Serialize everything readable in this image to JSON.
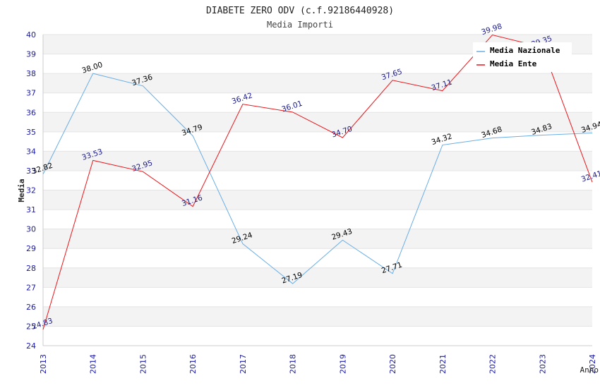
{
  "chart_data": {
    "type": "line",
    "title": "DIABETE ZERO ODV (c.f.92186440928)",
    "subtitle": "Media Importi",
    "xlabel": "Anno",
    "ylabel": "Media",
    "x": [
      "2013",
      "2014",
      "2015",
      "2016",
      "2017",
      "2018",
      "2019",
      "2020",
      "2021",
      "2022",
      "2023",
      "2024"
    ],
    "ylim": [
      24,
      40
    ],
    "yticks": [
      "24",
      "25",
      "26",
      "27",
      "28",
      "29",
      "30",
      "31",
      "32",
      "33",
      "34",
      "35",
      "36",
      "37",
      "38",
      "39",
      "40"
    ],
    "grid": true,
    "legend_position": "top-right",
    "series": [
      {
        "name": "Media Nazionale",
        "color": "#6aaee6",
        "label_color": "#000000",
        "values": [
          32.82,
          38.0,
          37.36,
          34.79,
          29.24,
          27.19,
          29.43,
          27.71,
          34.32,
          34.68,
          34.83,
          34.94
        ],
        "labels": [
          "32.82",
          "38.00",
          "37.36",
          "34.79",
          "29.24",
          "27.19",
          "29.43",
          "27.71",
          "34.32",
          "34.68",
          "34.83",
          "34.94"
        ]
      },
      {
        "name": "Media Ente",
        "color": "#e8161b",
        "label_color": "#1a1a8c",
        "values": [
          24.83,
          33.53,
          32.95,
          31.16,
          36.42,
          36.01,
          34.7,
          37.65,
          37.11,
          39.98,
          39.35,
          32.41
        ],
        "labels": [
          "24.83",
          "33.53",
          "32.95",
          "31.16",
          "36.42",
          "36.01",
          "34.70",
          "37.65",
          "37.11",
          "39.98",
          "39.35",
          "32.41"
        ]
      }
    ]
  }
}
